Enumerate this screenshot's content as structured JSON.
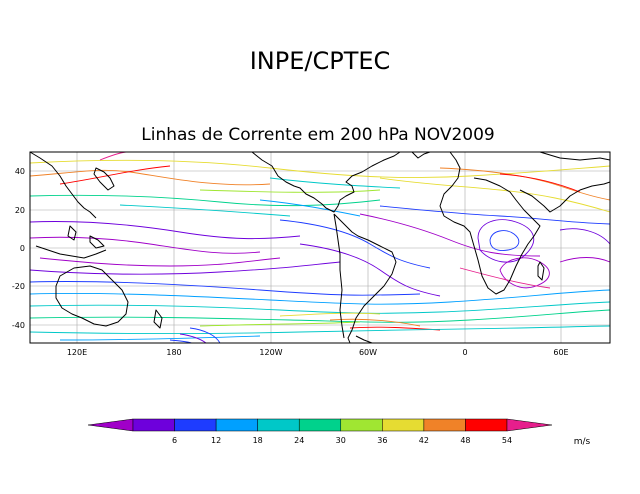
{
  "header": {
    "org": "INPE/CPTEC"
  },
  "map": {
    "title": "Linhas de Corrente em 200 hPa NOV2009",
    "lat_ticks": [
      "40",
      "20",
      "0",
      "-20",
      "-40"
    ],
    "lon_ticks": [
      "120E",
      "180",
      "120W",
      "60W",
      "0",
      "60E"
    ]
  },
  "legend": {
    "labels": [
      "6",
      "12",
      "18",
      "24",
      "30",
      "36",
      "42",
      "48",
      "54"
    ],
    "colors": [
      "#a000c8",
      "#6e00dc",
      "#1e3cff",
      "#00a0ff",
      "#00c8c8",
      "#00d28c",
      "#a0e632",
      "#e6dc32",
      "#f08228",
      "#ff0000",
      "#e61e8c"
    ],
    "unit": "m/s"
  }
}
